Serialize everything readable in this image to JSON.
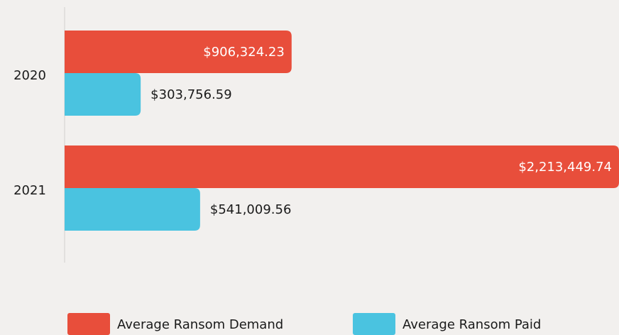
{
  "chart_data": {
    "type": "bar",
    "orientation": "horizontal",
    "categories": [
      "2020",
      "2021"
    ],
    "series": [
      {
        "name": "Average Ransom Demand",
        "color": "#e84e3b",
        "values": [
          906324.23,
          2213449.74
        ],
        "value_labels": [
          "$906,324.23",
          "$2,213,449.74"
        ]
      },
      {
        "name": "Average Ransom Paid",
        "color": "#4ac3e0",
        "values": [
          303756.59,
          541009.56
        ],
        "value_labels": [
          "$303,756.59",
          "$541,009.56"
        ]
      }
    ]
  }
}
